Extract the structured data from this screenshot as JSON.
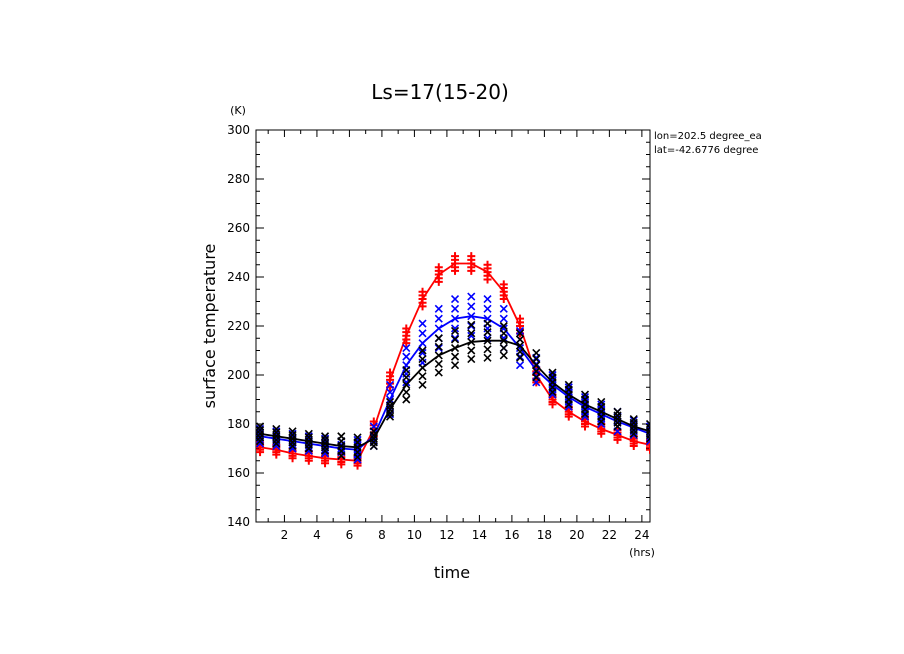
{
  "chart_data": {
    "type": "scatter",
    "title": "Ls=17(15-20)",
    "xlabel": "time",
    "ylabel": "surface temperature",
    "x_unit": "(hrs)",
    "y_unit": "(K)",
    "xlim": [
      0.25,
      24.5
    ],
    "ylim": [
      140,
      300
    ],
    "x_ticks": [
      2,
      4,
      6,
      8,
      10,
      12,
      14,
      16,
      18,
      20,
      22,
      24
    ],
    "y_ticks": [
      140,
      160,
      180,
      200,
      220,
      240,
      260,
      280,
      300
    ],
    "info_lines": [
      "lon=202.5 degree_ea",
      "lat=-42.6776 degree"
    ],
    "x": [
      0.5,
      1.5,
      2.5,
      3.5,
      4.5,
      5.5,
      6.5,
      7.5,
      8.5,
      9.5,
      10.5,
      11.5,
      12.5,
      13.5,
      14.5,
      15.5,
      16.5,
      17.5,
      18.5,
      19.5,
      20.5,
      21.5,
      22.5,
      23.5,
      24.5
    ],
    "series": [
      {
        "color": "#ff0000",
        "marker": "+",
        "line": [
          170.5,
          169.5,
          168,
          167,
          166,
          165.5,
          165,
          178,
          198,
          216,
          231,
          241,
          245.5,
          245.5,
          242,
          234,
          220,
          200,
          190,
          185,
          181,
          178,
          175.5,
          173,
          171.5
        ],
        "spread": [
          2,
          2,
          2,
          2,
          2,
          2,
          2,
          3,
          3,
          3,
          3,
          3,
          3,
          3,
          3,
          3,
          3,
          3,
          2,
          2,
          2,
          2,
          2,
          2,
          2
        ]
      },
      {
        "color": "#0000ff",
        "marker": "x",
        "line": [
          175,
          174,
          173,
          172,
          171,
          170,
          169.5,
          175,
          190,
          204,
          213,
          219,
          223,
          224,
          223,
          219,
          211,
          202,
          196,
          191,
          187,
          184,
          181,
          178.5,
          176
        ],
        "spread": [
          3,
          3,
          3,
          3,
          3,
          3,
          4,
          4,
          6,
          7,
          8,
          8,
          8,
          8,
          8,
          8,
          7,
          5,
          4,
          4,
          4,
          4,
          4,
          3,
          3
        ]
      },
      {
        "color": "#000000",
        "marker": "x",
        "line": [
          176,
          175,
          174,
          173,
          172,
          171,
          170.5,
          174,
          186,
          196,
          203,
          208,
          211,
          213.5,
          214,
          214,
          212,
          204,
          197,
          192,
          188,
          185,
          182,
          179,
          177
        ],
        "spread": [
          3,
          3,
          3,
          3,
          3,
          4,
          4,
          3,
          3,
          6,
          7,
          7,
          7,
          7,
          7,
          6,
          5,
          5,
          4,
          4,
          4,
          4,
          3,
          3,
          3
        ]
      }
    ]
  }
}
